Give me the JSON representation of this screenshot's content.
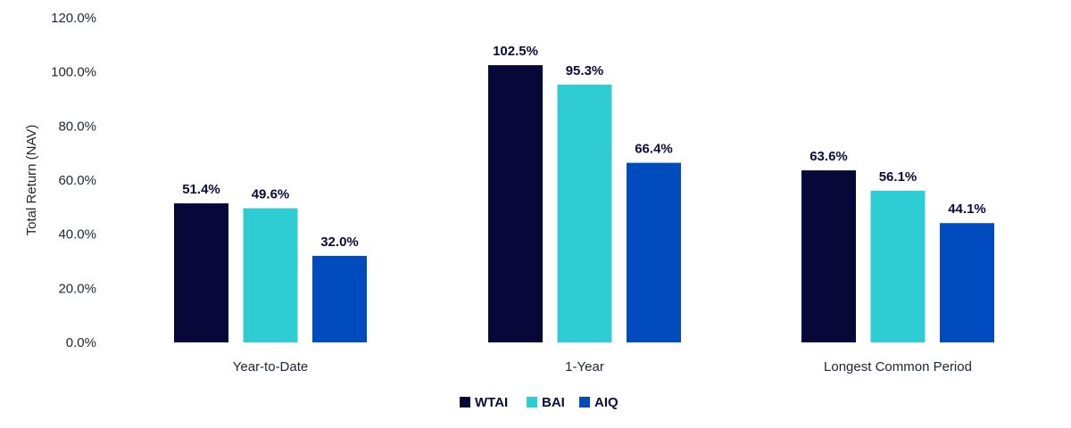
{
  "chart_data": {
    "type": "bar",
    "title": "",
    "xlabel": "",
    "ylabel": "Total Return (NAV)",
    "ylim": [
      0,
      120
    ],
    "yticks": [
      "0.0%",
      "20.0%",
      "40.0%",
      "60.0%",
      "80.0%",
      "100.0%",
      "120.0%"
    ],
    "categories": [
      "Year-to-Date",
      "1-Year",
      "Longest Common Period"
    ],
    "series": [
      {
        "name": "WTAI",
        "color": "#08073a",
        "values": [
          51.4,
          102.5,
          63.6
        ],
        "labels": [
          "51.4%",
          "102.5%",
          "63.6%"
        ]
      },
      {
        "name": "BAI",
        "color": "#2ecdd3",
        "values": [
          49.6,
          95.3,
          56.1
        ],
        "labels": [
          "49.6%",
          "95.3%",
          "56.1%"
        ]
      },
      {
        "name": "AIQ",
        "color": "#004bbd",
        "values": [
          32.0,
          66.4,
          44.1
        ],
        "labels": [
          "32.0%",
          "66.4%",
          "44.1%"
        ]
      }
    ],
    "legend": "bottom-center",
    "grid": false
  }
}
